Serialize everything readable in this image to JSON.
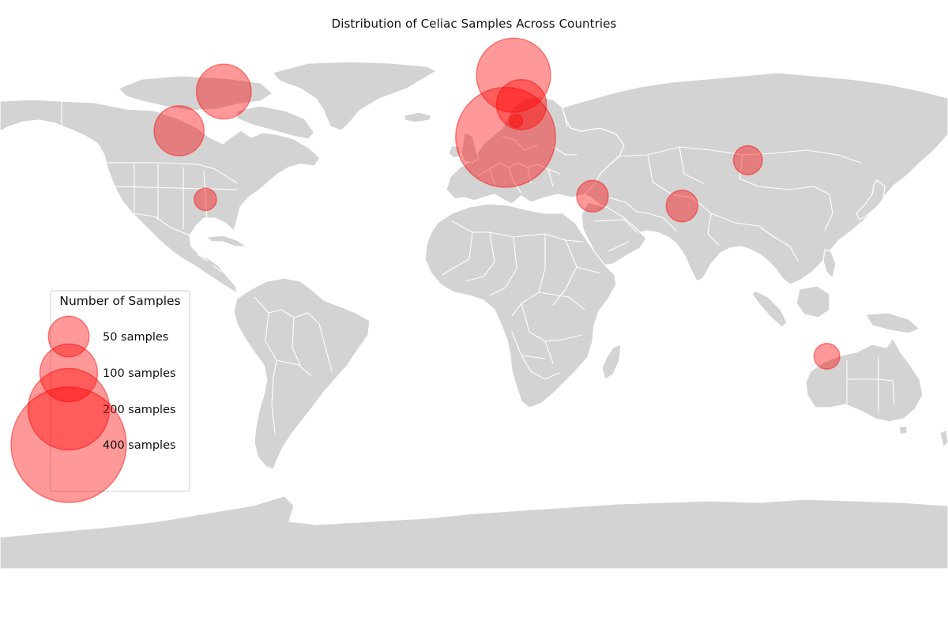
{
  "title": "Distribution of Celiac Samples Across Countries",
  "colors": {
    "land": "#d3d3d3",
    "borders": "#ffffff",
    "bubble": "#ff0000",
    "bubble_alpha": 0.4,
    "background": "#ffffff"
  },
  "legend": {
    "title": "Number of Samples",
    "placement": "left",
    "entries": [
      {
        "label": "50 samples",
        "samples": 50
      },
      {
        "label": "100 samples",
        "samples": 100
      },
      {
        "label": "200 samples",
        "samples": 200
      },
      {
        "label": "400 samples",
        "samples": 400
      }
    ]
  },
  "chart_data": {
    "type": "scatter",
    "map": "world",
    "size_encoding": "marker area proportional to sample count",
    "points": [
      {
        "lon": -95,
        "lat": 56,
        "samples": 90
      },
      {
        "lon": -112,
        "lat": 44,
        "samples": 75
      },
      {
        "lon": -102,
        "lat": 23,
        "samples": 15
      },
      {
        "lon": 15,
        "lat": 61,
        "samples": 165
      },
      {
        "lon": 18,
        "lat": 52,
        "samples": 75
      },
      {
        "lon": 16,
        "lat": 47,
        "samples": 5
      },
      {
        "lon": 12,
        "lat": 42,
        "samples": 300
      },
      {
        "lon": 45,
        "lat": 24,
        "samples": 30
      },
      {
        "lon": 79,
        "lat": 21,
        "samples": 30
      },
      {
        "lon": 104,
        "lat": 35,
        "samples": 25
      },
      {
        "lon": 134,
        "lat": -25,
        "samples": 20
      }
    ]
  }
}
